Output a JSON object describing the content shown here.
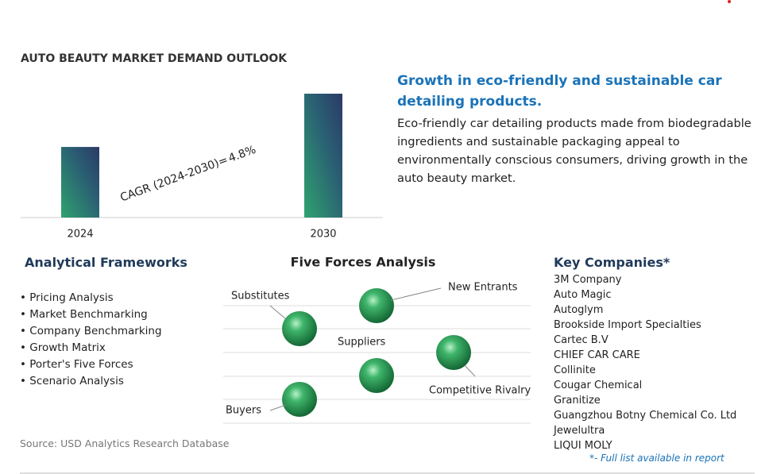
{
  "chart": {
    "title": "AUTO BEAUTY MARKET DEMAND OUTLOOK",
    "categories": [
      "2024",
      "2030"
    ],
    "values": [
      57,
      100
    ],
    "cagr_label": "CAGR (2024-2030)=",
    "cagr_value": "4.8%"
  },
  "highlight": {
    "heading": "Growth in eco-friendly and sustainable car detailing products.",
    "body": "Eco-friendly car detailing products made from biodegradable ingredients and sustainable packaging appeal to environmentally conscious consumers, driving growth in the auto beauty market."
  },
  "frameworks": {
    "title": "Analytical Frameworks",
    "items": [
      "Pricing Analysis",
      "Market Benchmarking",
      "Company Benchmarking",
      "Growth Matrix",
      "Porter's Five Forces",
      "Scenario Analysis"
    ]
  },
  "five_forces": {
    "title": "Five Forces Analysis",
    "labels": [
      "Substitutes",
      "New Entrants",
      "Suppliers",
      "Competitive Rivalry",
      "Buyers"
    ]
  },
  "companies": {
    "title": "Key Companies*",
    "items": [
      "3M Company",
      "Auto Magic",
      "Autoglym",
      "Brookside Import Specialties",
      "Cartec B.V",
      "CHIEF CAR CARE",
      "Collinite",
      "Cougar Chemical",
      "Granitize",
      "Guangzhou Botny Chemical Co. Ltd",
      "Jewelultra",
      "LIQUI MOLY"
    ],
    "note": "*- Full list available in report"
  },
  "source": "Source: USD Analytics Research Database"
}
